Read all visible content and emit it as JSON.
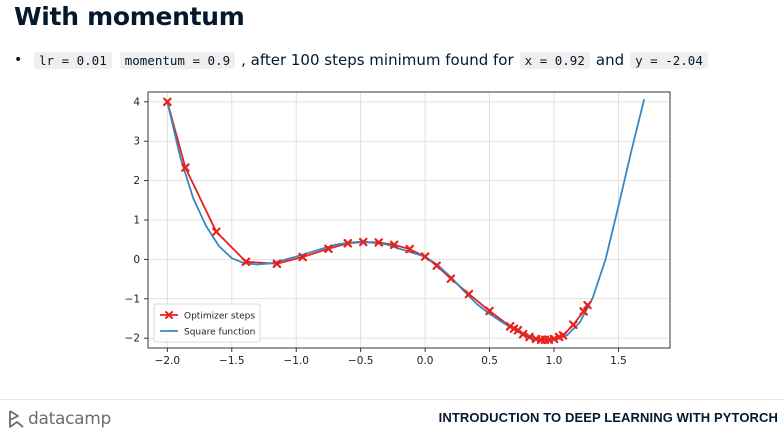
{
  "slide": {
    "title": "With momentum",
    "bullet": {
      "code_lr": "lr = 0.01",
      "code_momentum": "momentum = 0.9",
      "text_after": ", after 100 steps minimum found for",
      "code_x": "x = 0.92",
      "text_and": "and",
      "code_y": "y = -2.04"
    }
  },
  "footer": {
    "brand": "datacamp",
    "course": "INTRODUCTION TO DEEP LEARNING WITH PYTORCH"
  },
  "chart_data": {
    "type": "line",
    "title": "",
    "xlabel": "",
    "ylabel": "",
    "xlim": [
      -2.15,
      1.9
    ],
    "ylim": [
      -2.25,
      4.25
    ],
    "xticks": [
      -2.0,
      -1.5,
      -1.0,
      -0.5,
      0.0,
      0.5,
      1.0,
      1.5
    ],
    "xtick_labels": [
      "−2.0",
      "−1.5",
      "−1.0",
      "−0.5",
      "0.0",
      "0.5",
      "1.0",
      "1.5"
    ],
    "yticks": [
      -2,
      -1,
      0,
      1,
      2,
      3,
      4
    ],
    "ytick_labels": [
      "−2",
      "−1",
      "0",
      "1",
      "2",
      "3",
      "4"
    ],
    "grid": true,
    "legend_position": "lower-left",
    "series": [
      {
        "name": "Optimizer steps",
        "color": "#e8211b",
        "marker": "x",
        "x": [
          -2.0,
          -1.86,
          -1.62,
          -1.39,
          -1.15,
          -0.95,
          -0.75,
          -0.6,
          -0.48,
          -0.36,
          -0.24,
          -0.12,
          0.0,
          0.09,
          0.2,
          0.34,
          0.5,
          0.66,
          0.69,
          0.72,
          0.76,
          0.81,
          0.86,
          0.9,
          0.93,
          0.96,
          1.0,
          1.04,
          1.07,
          1.15,
          1.23,
          1.26
        ],
        "y": [
          4.0,
          2.33,
          0.7,
          -0.06,
          -0.11,
          0.06,
          0.27,
          0.41,
          0.44,
          0.43,
          0.37,
          0.26,
          0.07,
          -0.16,
          -0.49,
          -0.88,
          -1.31,
          -1.7,
          -1.76,
          -1.8,
          -1.9,
          -1.97,
          -2.02,
          -2.04,
          -2.04,
          -2.04,
          -2.02,
          -1.97,
          -1.93,
          -1.66,
          -1.32,
          -1.16
        ]
      },
      {
        "name": "Square function",
        "color": "#3b86c0",
        "x": [
          -2.0,
          -1.9,
          -1.8,
          -1.7,
          -1.6,
          -1.5,
          -1.4,
          -1.3,
          -1.2,
          -1.1,
          -1.0,
          -0.9,
          -0.8,
          -0.7,
          -0.6,
          -0.5,
          -0.4,
          -0.3,
          -0.2,
          -0.1,
          0.0,
          0.1,
          0.2,
          0.3,
          0.4,
          0.5,
          0.6,
          0.7,
          0.8,
          0.9,
          1.0,
          1.1,
          1.2,
          1.3,
          1.4,
          1.5,
          1.6,
          1.7
        ],
        "y": [
          4.0,
          2.6,
          1.56,
          0.85,
          0.34,
          0.03,
          -0.1,
          -0.13,
          -0.1,
          -0.02,
          0.07,
          0.17,
          0.27,
          0.37,
          0.42,
          0.45,
          0.42,
          0.38,
          0.27,
          0.17,
          0.07,
          -0.15,
          -0.45,
          -0.8,
          -1.13,
          -1.38,
          -1.6,
          -1.8,
          -1.97,
          -2.04,
          -2.04,
          -1.93,
          -1.6,
          -0.98,
          0.0,
          1.35,
          2.75,
          4.07
        ]
      }
    ]
  }
}
